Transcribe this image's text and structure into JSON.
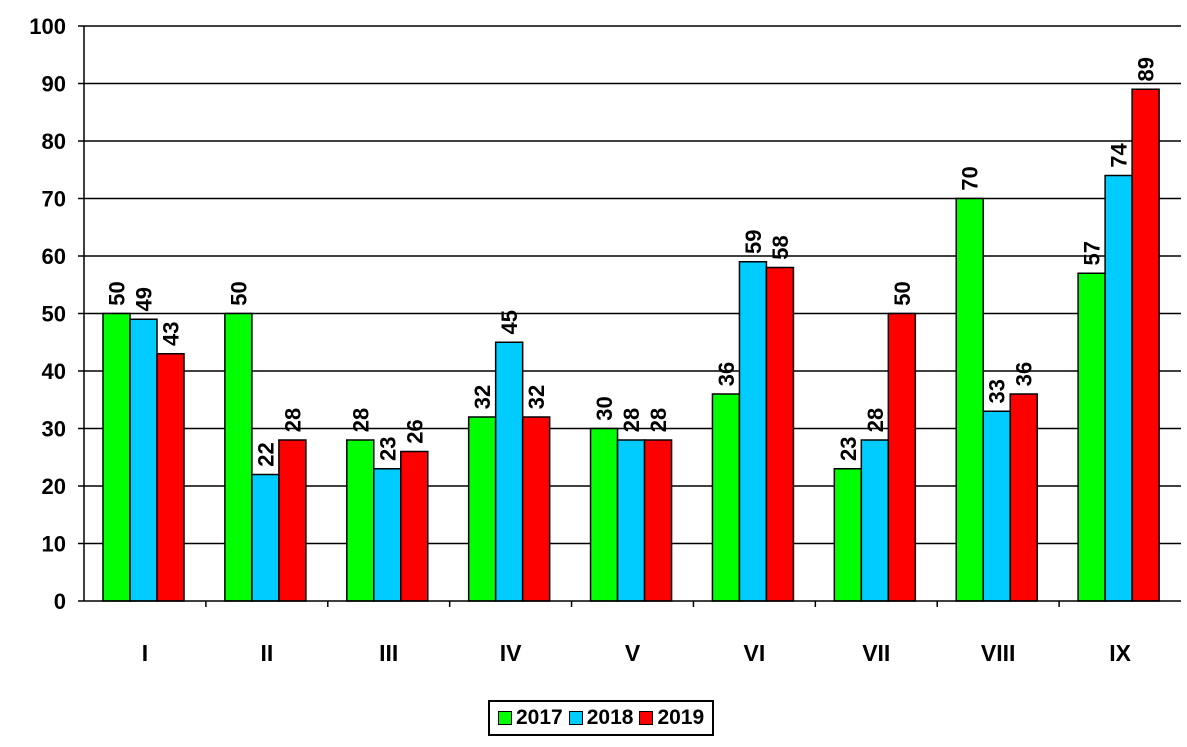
{
  "chart_data": {
    "type": "bar",
    "categories": [
      "I",
      "II",
      "III",
      "IV",
      "V",
      "VI",
      "VII",
      "VIII",
      "IX"
    ],
    "series": [
      {
        "name": "2017",
        "color": "#00ff00",
        "values": [
          50,
          50,
          28,
          32,
          30,
          36,
          23,
          70,
          57
        ]
      },
      {
        "name": "2018",
        "color": "#00ccff",
        "values": [
          49,
          22,
          23,
          45,
          28,
          59,
          28,
          33,
          74
        ]
      },
      {
        "name": "2019",
        "color": "#ff0000",
        "values": [
          43,
          28,
          26,
          32,
          28,
          58,
          50,
          36,
          89
        ]
      }
    ],
    "y_ticks": [
      "0",
      "10",
      "20",
      "30",
      "40",
      "50",
      "60",
      "70",
      "80",
      "90",
      "100"
    ],
    "ylim": [
      0,
      100
    ],
    "grid": true,
    "legend": "bottom",
    "data_labels": "rotated"
  }
}
